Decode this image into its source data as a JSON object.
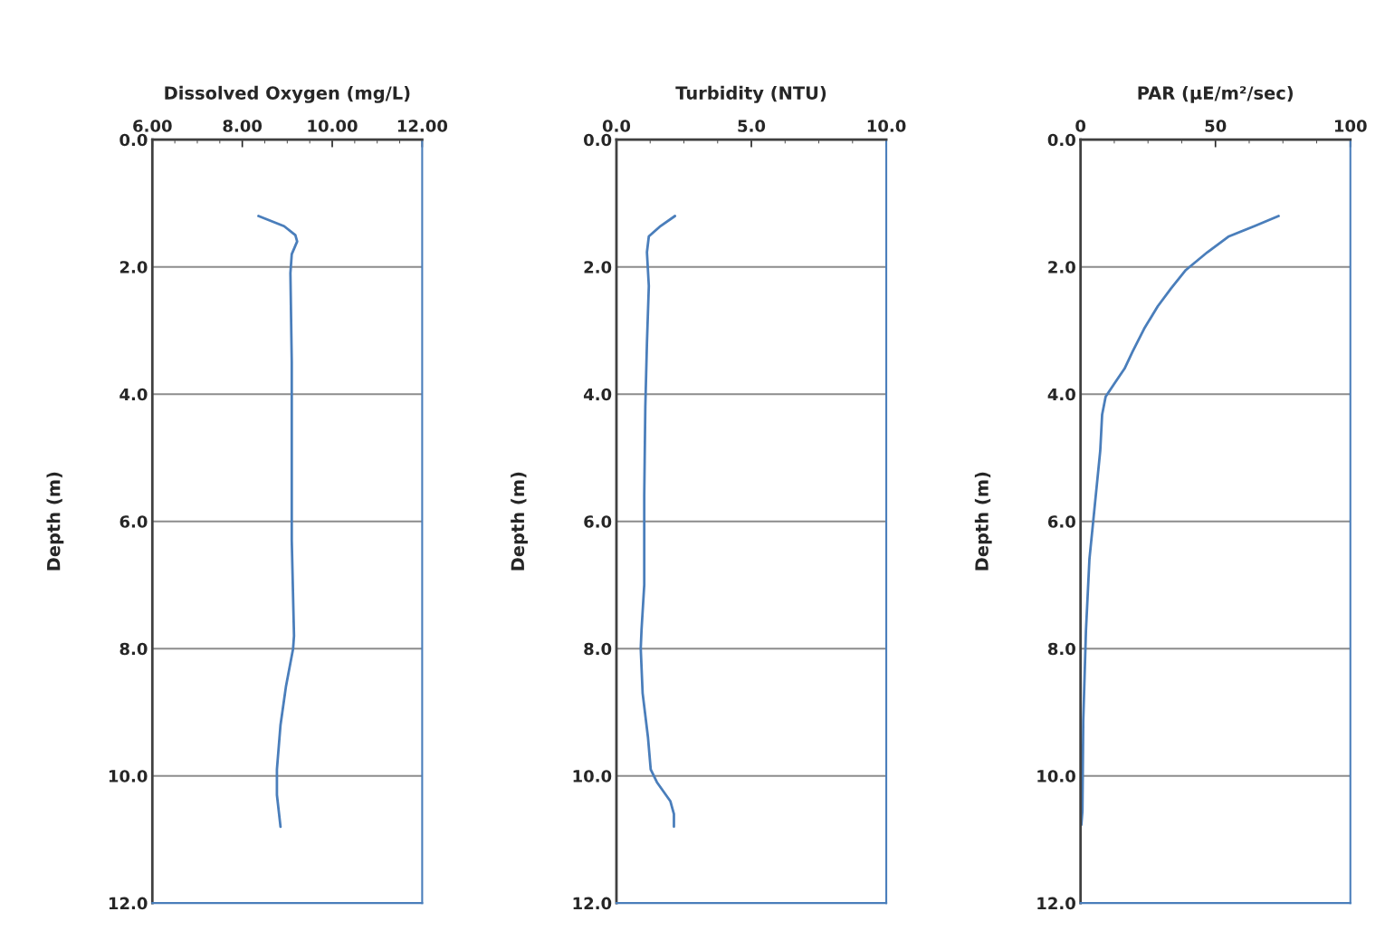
{
  "chart_data": [
    {
      "type": "line",
      "xlabel": "Dissolved Oxygen (mg/L)",
      "ylabel": "Depth (m)",
      "xlim": [
        6,
        12
      ],
      "xticks": [
        {
          "value": 6,
          "label": "6.00"
        },
        {
          "value": 8,
          "label": "8.00"
        },
        {
          "value": 10,
          "label": "10.00"
        },
        {
          "value": 12,
          "label": "12.00"
        }
      ],
      "ylim": [
        12,
        0
      ],
      "yticks": [
        {
          "value": 0,
          "label": "0.0"
        },
        {
          "value": 2,
          "label": "2.0"
        },
        {
          "value": 4,
          "label": "4.0"
        },
        {
          "value": 6,
          "label": "6.0"
        },
        {
          "value": 8,
          "label": "8.0"
        },
        {
          "value": 10,
          "label": "10.0"
        },
        {
          "value": 12,
          "label": "12.0"
        }
      ],
      "grid": "y",
      "marker": "none",
      "line_style": "solid",
      "series": [
        {
          "color": "#4a7ebb",
          "x": [
            8.36,
            8.93,
            9.18,
            9.22,
            9.1,
            9.07,
            9.1,
            9.1,
            9.1,
            9.15,
            9.13,
            8.97,
            8.85,
            8.77,
            8.77,
            8.85
          ],
          "values": [
            1.2,
            1.36,
            1.5,
            1.6,
            1.8,
            2.1,
            3.5,
            4.9,
            6.3,
            7.8,
            8.0,
            8.6,
            9.2,
            9.9,
            10.3,
            10.8
          ]
        }
      ]
    },
    {
      "type": "line",
      "xlabel": "Turbidity (NTU)",
      "ylabel": "Depth (m)",
      "xlim": [
        0,
        10
      ],
      "xticks": [
        {
          "value": 0,
          "label": "0.0"
        },
        {
          "value": 5,
          "label": "5.0"
        },
        {
          "value": 10,
          "label": "10.0"
        }
      ],
      "ylim": [
        12,
        0
      ],
      "yticks": [
        {
          "value": 0,
          "label": "0.0"
        },
        {
          "value": 2,
          "label": "2.0"
        },
        {
          "value": 4,
          "label": "4.0"
        },
        {
          "value": 6,
          "label": "6.0"
        },
        {
          "value": 8,
          "label": "8.0"
        },
        {
          "value": 10,
          "label": "10.0"
        },
        {
          "value": 12,
          "label": "12.0"
        }
      ],
      "grid": "y",
      "marker": "none",
      "line_style": "solid",
      "series": [
        {
          "color": "#4a7ebb",
          "x": [
            2.17,
            1.6,
            1.2,
            1.13,
            1.2,
            1.13,
            1.07,
            1.03,
            1.03,
            0.93,
            0.9,
            0.97,
            1.17,
            1.27,
            1.5,
            2.0,
            2.13,
            2.13
          ],
          "values": [
            1.2,
            1.37,
            1.52,
            1.77,
            2.3,
            3.2,
            4.2,
            5.6,
            7.0,
            7.7,
            8.0,
            8.7,
            9.4,
            9.9,
            10.1,
            10.4,
            10.6,
            10.8
          ]
        }
      ]
    },
    {
      "type": "line",
      "xlabel": "PAR (µE/m²/sec)",
      "ylabel": "Depth (m)",
      "xlim": [
        0,
        100
      ],
      "xticks": [
        0,
        50,
        100
      ],
      "ylim": [
        12,
        0
      ],
      "yticks": [
        {
          "value": 0,
          "label": "0.0"
        },
        {
          "value": 2,
          "label": "2.0"
        },
        {
          "value": 4,
          "label": "4.0"
        },
        {
          "value": 6,
          "label": "6.0"
        },
        {
          "value": 8,
          "label": "8.0"
        },
        {
          "value": 10,
          "label": "10.0"
        },
        {
          "value": 12,
          "label": "12.0"
        }
      ],
      "grid": "y",
      "marker": "none",
      "line_style": "solid",
      "series": [
        {
          "color": "#4a7ebb",
          "x": [
            73.4,
            65,
            55,
            47,
            39,
            33.5,
            28.6,
            23.6,
            19.3,
            16.3,
            12.6,
            9.3,
            8.0,
            7.3,
            5.3,
            3.3,
            2.0,
            1.0,
            0.7,
            0.3
          ],
          "values": [
            1.2,
            1.35,
            1.52,
            1.77,
            2.05,
            2.34,
            2.62,
            2.97,
            3.33,
            3.6,
            3.83,
            4.04,
            4.32,
            4.89,
            5.74,
            6.59,
            7.72,
            9.14,
            10.55,
            10.77
          ]
        }
      ]
    }
  ]
}
